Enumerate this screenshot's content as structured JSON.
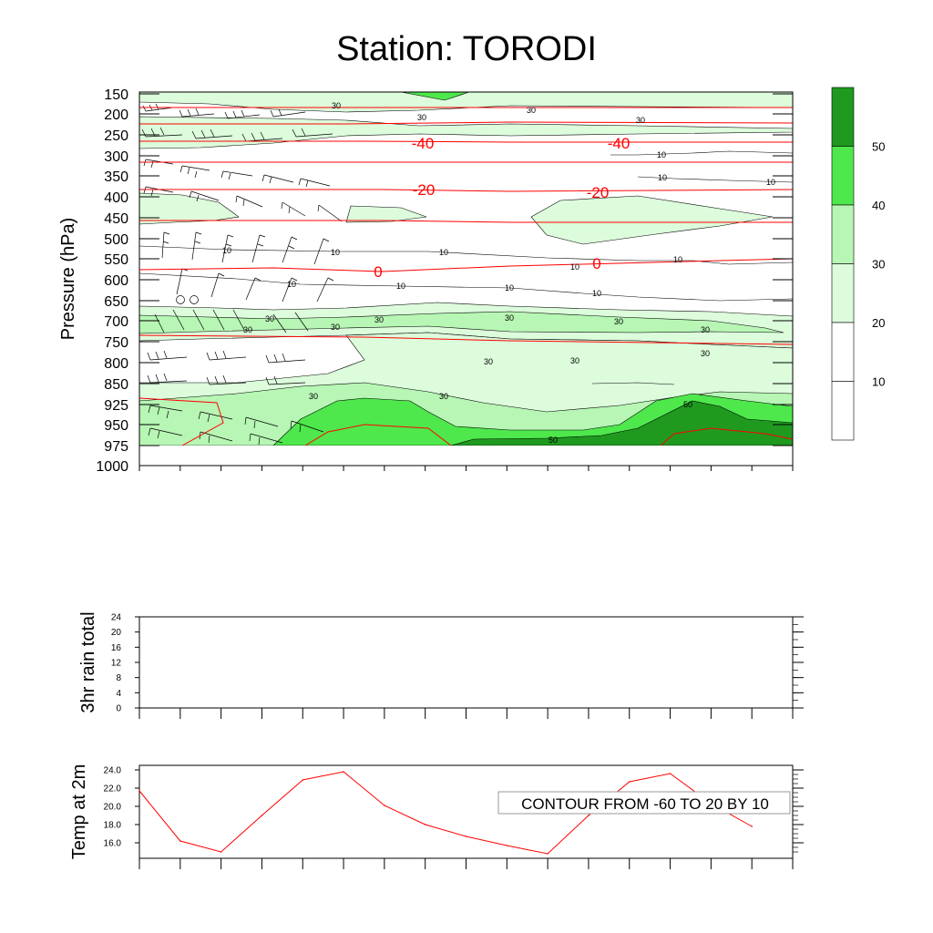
{
  "title": "Station: TORODI",
  "colors": {
    "fill_20_30": "#dcfcdc",
    "fill_30_40": "#b7f6b4",
    "fill_40_50": "#4ee84c",
    "fill_50_plus": "#1f9a1f",
    "temperature_contour": "#ff0000",
    "wind_contour": "#000000",
    "t2m_line": "#ff0000"
  },
  "chart_data": [
    {
      "type": "heatmap",
      "name": "cross_section",
      "ylabel": "Pressure (hPa)",
      "y_ticks": [
        "150",
        "200",
        "250",
        "300",
        "350",
        "400",
        "450",
        "500",
        "550",
        "600",
        "650",
        "700",
        "750",
        "800",
        "850",
        "925",
        "950",
        "975",
        "1000"
      ],
      "x_ticks_count": 16,
      "filled_contour_levels": [
        10,
        20,
        30,
        40,
        50
      ],
      "colorbar_labels": [
        "50",
        "40",
        "30",
        "20",
        "10"
      ],
      "colorbar_colors": [
        "#1f9a1f",
        "#4ee84c",
        "#b7f6b4",
        "#dcfcdc",
        "#ffffff",
        "#ffffff"
      ],
      "temperature_contour_labels": [
        "-40",
        "-40",
        "-20",
        "-20",
        "0",
        "0"
      ],
      "wind_contour_labels": [
        "30",
        "30",
        "30",
        "30",
        "10",
        "10",
        "10",
        "10",
        "10",
        "10",
        "10",
        "10",
        "10",
        "10",
        "10",
        "10",
        "30",
        "30",
        "30",
        "30",
        "30",
        "30",
        "30",
        "30",
        "30",
        "30",
        "30",
        "30",
        "50",
        "50"
      ]
    },
    {
      "type": "line",
      "name": "rain",
      "ylabel": "3hr rain total",
      "y_ticks": [
        "24",
        "20",
        "16",
        "12",
        "8",
        "4",
        "0"
      ],
      "ylim": [
        0,
        24
      ],
      "x_ticks_count": 16,
      "values": []
    },
    {
      "type": "line",
      "name": "t2m",
      "ylabel": "Temp at 2m",
      "y_ticks": [
        "24.0",
        "22.0",
        "20.0",
        "18.0",
        "16.0"
      ],
      "ylim": [
        14.3,
        24.5
      ],
      "x_index": [
        0,
        1,
        2,
        3,
        4,
        5,
        6,
        7,
        8,
        9,
        10,
        11,
        12,
        13,
        14,
        15
      ],
      "values": [
        21.7,
        16.2,
        15.0,
        19.0,
        22.9,
        23.8,
        20.1,
        18.0,
        16.7,
        15.7,
        14.8,
        19.0,
        22.7,
        23.6,
        20.3,
        17.8
      ],
      "annotation": "CONTOUR FROM -60 TO 20 BY 10"
    }
  ]
}
